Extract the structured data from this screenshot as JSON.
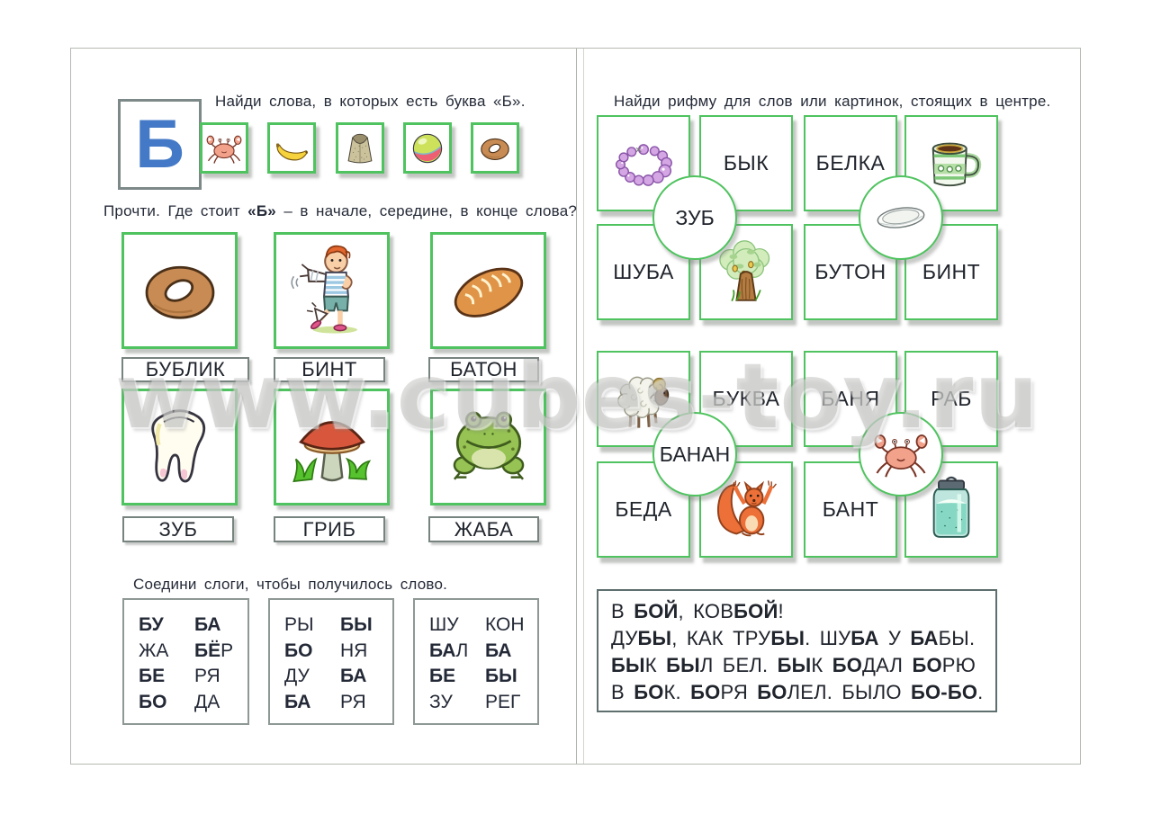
{
  "watermark": {
    "text": "www.cubes-toy.ru"
  },
  "colors": {
    "card_border_green": "#4fc35f",
    "letter_blue": "#4379c6",
    "label_border_gray": "#77837f",
    "text_dark": "#20242c"
  },
  "left_page": {
    "letter_card": {
      "letter": "Б"
    },
    "task_find": {
      "instruction": "Найди слова, в которых есть буква «Б».",
      "card_images": [
        "crab",
        "banana",
        "fur-coat",
        "ball",
        "bagel"
      ]
    },
    "task_position": {
      "instruction_parts": [
        {
          "text": "Прочти. Где стоит ",
          "bold": false
        },
        {
          "text": "«Б»",
          "bold": true
        },
        {
          "text": " – в начале, середине, в конце слова?",
          "bold": false
        }
      ],
      "cards": [
        {
          "image": "bagel",
          "label": "БУБЛИК"
        },
        {
          "image": "bandaged-boy",
          "label": "БИНТ"
        },
        {
          "image": "bread-loaf",
          "label": "БАТОН"
        },
        {
          "image": "tooth",
          "label": "ЗУБ"
        },
        {
          "image": "mushroom",
          "label": "ГРИБ"
        },
        {
          "image": "frog",
          "label": "ЖАБА"
        }
      ]
    },
    "task_syllables": {
      "instruction": "Соедини слоги, чтобы получилось слово.",
      "boxes": [
        {
          "rows": [
            [
              [
                {
                  "text": "БУ",
                  "bold": true
                }
              ],
              [
                {
                  "text": "БА",
                  "bold": true
                }
              ]
            ],
            [
              [
                {
                  "text": "ЖА",
                  "bold": false
                }
              ],
              [
                {
                  "text": "БЁ",
                  "bold": true
                },
                {
                  "text": "Р",
                  "bold": false
                }
              ]
            ],
            [
              [
                {
                  "text": "БЕ",
                  "bold": true
                }
              ],
              [
                {
                  "text": "РЯ",
                  "bold": false
                }
              ]
            ],
            [
              [
                {
                  "text": "БО",
                  "bold": true
                }
              ],
              [
                {
                  "text": "ДА",
                  "bold": false
                }
              ]
            ]
          ]
        },
        {
          "rows": [
            [
              [
                {
                  "text": "РЫ",
                  "bold": false
                }
              ],
              [
                {
                  "text": "БЫ",
                  "bold": true
                }
              ]
            ],
            [
              [
                {
                  "text": "БО",
                  "bold": true
                }
              ],
              [
                {
                  "text": "НЯ",
                  "bold": false
                }
              ]
            ],
            [
              [
                {
                  "text": "ДУ",
                  "bold": false
                }
              ],
              [
                {
                  "text": "БА",
                  "bold": true
                }
              ]
            ],
            [
              [
                {
                  "text": "БА",
                  "bold": true
                }
              ],
              [
                {
                  "text": "РЯ",
                  "bold": false
                }
              ]
            ]
          ]
        },
        {
          "rows": [
            [
              [
                {
                  "text": "ШУ",
                  "bold": false
                }
              ],
              [
                {
                  "text": "КОН",
                  "bold": false
                }
              ]
            ],
            [
              [
                {
                  "text": "БА",
                  "bold": true
                },
                {
                  "text": "Л",
                  "bold": false
                }
              ],
              [
                {
                  "text": "БА",
                  "bold": true
                }
              ]
            ],
            [
              [
                {
                  "text": "БЕ",
                  "bold": true
                }
              ],
              [
                {
                  "text": "БЫ",
                  "bold": true
                }
              ]
            ],
            [
              [
                {
                  "text": "ЗУ",
                  "bold": false
                }
              ],
              [
                {
                  "text": "РЕГ",
                  "bold": false
                }
              ]
            ]
          ]
        }
      ]
    }
  },
  "right_page": {
    "task_rhyme": {
      "instruction": "Найди рифму для слов или картинок, стоящих в центре.",
      "groups": [
        {
          "center": {
            "type": "word",
            "text": "ЗУБ"
          },
          "cards": [
            {
              "type": "image",
              "image": "beads"
            },
            {
              "type": "word",
              "text": "БЫК"
            },
            {
              "type": "word",
              "text": "ШУБА"
            },
            {
              "type": "image",
              "image": "oak-tree"
            }
          ]
        },
        {
          "center": {
            "type": "image",
            "image": "plate"
          },
          "cards": [
            {
              "type": "word",
              "text": "БЕЛКА"
            },
            {
              "type": "image",
              "image": "mug"
            },
            {
              "type": "word",
              "text": "БУТОН"
            },
            {
              "type": "word",
              "text": "БИНТ"
            }
          ]
        },
        {
          "center": {
            "type": "word",
            "text": "БАНАН"
          },
          "cards": [
            {
              "type": "image",
              "image": "sheep"
            },
            {
              "type": "word",
              "text": "БУКВА"
            },
            {
              "type": "word",
              "text": "БЕДА"
            },
            {
              "type": "image",
              "image": "squirrel"
            }
          ]
        },
        {
          "center": {
            "type": "image",
            "image": "crab"
          },
          "cards": [
            {
              "type": "word",
              "text": "БАНЯ"
            },
            {
              "type": "word",
              "text": "РАБ"
            },
            {
              "type": "word",
              "text": "БАНТ"
            },
            {
              "type": "image",
              "image": "jar"
            }
          ]
        }
      ]
    },
    "rhyme_text": {
      "lines": [
        [
          {
            "text": "В ",
            "bold": false
          },
          {
            "text": "БОЙ",
            "bold": true
          },
          {
            "text": ", КОВ",
            "bold": false
          },
          {
            "text": "БОЙ",
            "bold": true
          },
          {
            "text": "!",
            "bold": false
          }
        ],
        [
          {
            "text": "ДУ",
            "bold": false
          },
          {
            "text": "БЫ",
            "bold": true
          },
          {
            "text": ", КАК ТРУ",
            "bold": false
          },
          {
            "text": "БЫ",
            "bold": true
          },
          {
            "text": ". ШУ",
            "bold": false
          },
          {
            "text": "БА",
            "bold": true
          },
          {
            "text": " У ",
            "bold": false
          },
          {
            "text": "БА",
            "bold": true
          },
          {
            "text": "БЫ.",
            "bold": false
          }
        ],
        [
          {
            "text": "БЫ",
            "bold": true
          },
          {
            "text": "К ",
            "bold": false
          },
          {
            "text": "БЫ",
            "bold": true
          },
          {
            "text": "Л БЕЛ. ",
            "bold": false
          },
          {
            "text": "БЫ",
            "bold": true
          },
          {
            "text": "К ",
            "bold": false
          },
          {
            "text": "БО",
            "bold": true
          },
          {
            "text": "ДАЛ ",
            "bold": false
          },
          {
            "text": "БО",
            "bold": true
          },
          {
            "text": "РЮ",
            "bold": false
          }
        ],
        [
          {
            "text": "В ",
            "bold": false
          },
          {
            "text": "БО",
            "bold": true
          },
          {
            "text": "К. ",
            "bold": false
          },
          {
            "text": "БО",
            "bold": true
          },
          {
            "text": "РЯ ",
            "bold": false
          },
          {
            "text": "БО",
            "bold": true
          },
          {
            "text": "ЛЕЛ. БЫЛО ",
            "bold": false
          },
          {
            "text": "БО-БО",
            "bold": true
          },
          {
            "text": ".",
            "bold": false
          }
        ]
      ]
    }
  }
}
